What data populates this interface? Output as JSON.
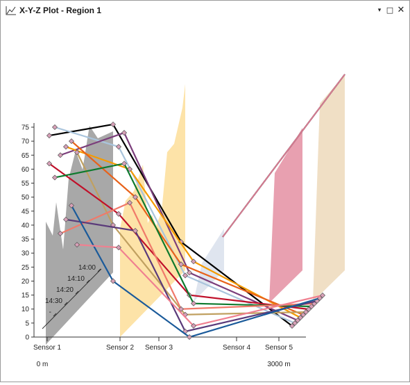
{
  "window": {
    "title": "X-Y-Z Plot - Region 1",
    "controls": {
      "dropdown": "▾",
      "maximize": "□",
      "close": "✕"
    }
  },
  "chart_data": {
    "type": "line",
    "y_ticks": [
      "0",
      "5",
      "10",
      "15",
      "20",
      "25",
      "30",
      "35",
      "40",
      "45",
      "50",
      "55",
      "60",
      "65",
      "70",
      "75"
    ],
    "ylim": [
      0,
      75
    ],
    "time_ticks": [
      "14:00",
      "14:10",
      "14:20",
      "14:30",
      "-"
    ],
    "x_categories": [
      "Sensor 1",
      "Sensor 2",
      "Sensor 3",
      "Sensor 4",
      "Sensor 5"
    ],
    "x_range_labels": [
      "0 m",
      "3000 m"
    ],
    "series": [
      {
        "color": "#000000",
        "values": [
          72,
          76,
          34,
          12
        ]
      },
      {
        "color": "#a9c4dc",
        "values": [
          75,
          68,
          22,
          11
        ]
      },
      {
        "color": "#7b3e7b",
        "values": [
          65,
          73,
          23,
          10
        ]
      },
      {
        "color": "#f59a00",
        "values": [
          68,
          60,
          27,
          9
        ]
      },
      {
        "color": "#e8621a",
        "values": [
          70,
          50,
          26,
          8
        ]
      },
      {
        "color": "#c0a060",
        "values": [
          66,
          40,
          8,
          7
        ]
      },
      {
        "color": "#c0102a",
        "values": [
          62,
          44,
          15,
          6
        ]
      },
      {
        "color": "#0e7a2e",
        "values": [
          57,
          62,
          12,
          5
        ]
      },
      {
        "color": "#f07a6a",
        "values": [
          37,
          48,
          10,
          4
        ]
      },
      {
        "color": "#5a3a7a",
        "values": [
          42,
          38,
          2,
          3
        ]
      },
      {
        "color": "#1a5a9a",
        "values": [
          47,
          20,
          0,
          2
        ]
      },
      {
        "color": "#f08090",
        "values": [
          33,
          32,
          4,
          1
        ]
      }
    ]
  }
}
